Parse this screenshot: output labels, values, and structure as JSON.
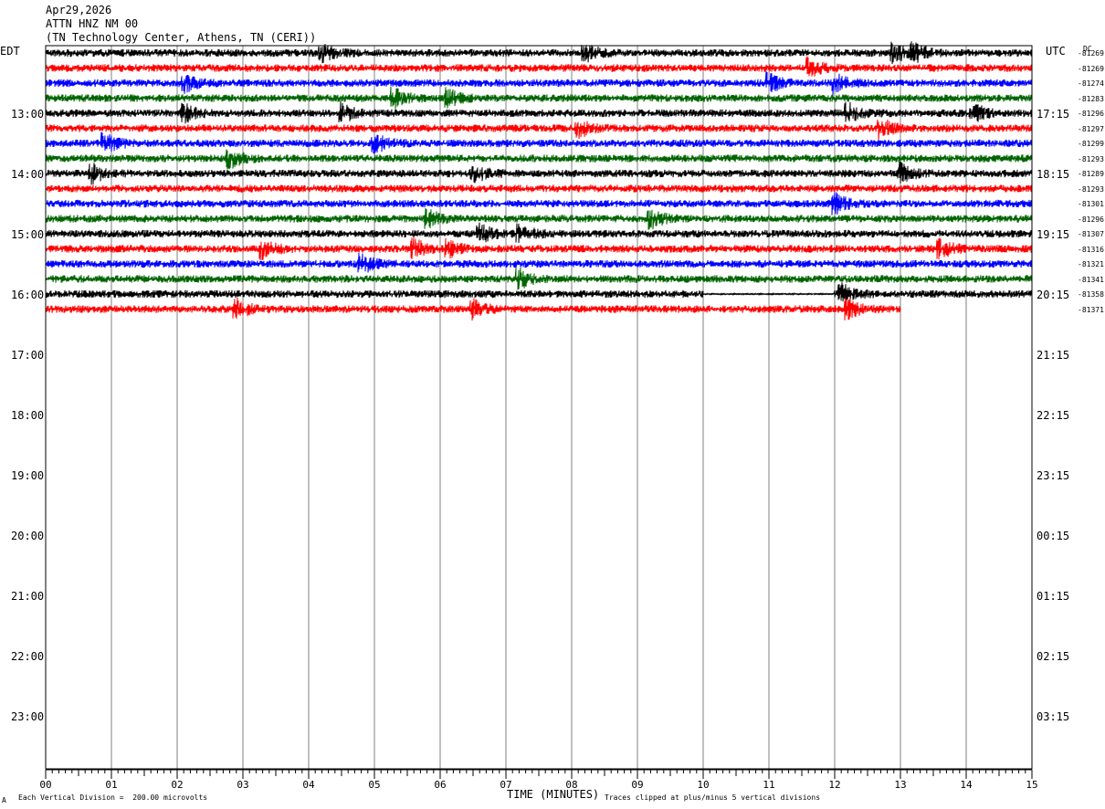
{
  "header": {
    "date": "Apr29,2026",
    "station": "ATTN HNZ NM 00",
    "location": "(TN Technology Center, Athens, TN (CERI))"
  },
  "axis": {
    "left_zone": "EDT",
    "right_zone": "UTC",
    "dc_label": "DC",
    "xlabel": "TIME (MINUTES)",
    "x_ticks": [
      "00",
      "01",
      "02",
      "03",
      "04",
      "05",
      "06",
      "07",
      "08",
      "09",
      "10",
      "11",
      "12",
      "13",
      "14",
      "15"
    ],
    "x_range": [
      0,
      15
    ],
    "left_hours": [
      "13:00",
      "14:00",
      "15:00",
      "16:00",
      "17:00",
      "18:00",
      "19:00",
      "20:00",
      "21:00",
      "22:00",
      "23:00"
    ],
    "right_hours": [
      "17:15",
      "18:15",
      "19:15",
      "20:15",
      "21:15",
      "22:15",
      "23:15",
      "00:15",
      "01:15",
      "02:15",
      "03:15"
    ]
  },
  "footer": {
    "scale": "Each Vertical Division =  200.00 microvolts",
    "clip": "Traces clipped at plus/minus 5 vertical divisions",
    "mark": "A"
  },
  "colors": {
    "trace_cycle": [
      "#000000",
      "#ff0000",
      "#0000ff",
      "#006400"
    ],
    "grid": "#808080"
  },
  "chart_data": {
    "type": "line",
    "title": "",
    "xlabel": "TIME (MINUTES)",
    "ylabel": "",
    "xlim": [
      0,
      15
    ],
    "trace_color_cycle": [
      "black",
      "red",
      "blue",
      "green"
    ],
    "traces": [
      {
        "dc": "-81269",
        "end_minute": 15,
        "events_minute": [
          4.2,
          8.2,
          12.9,
          13.2
        ]
      },
      {
        "dc": "-81269",
        "end_minute": 15,
        "events_minute": [
          11.6
        ]
      },
      {
        "dc": "-81274",
        "end_minute": 15,
        "events_minute": [
          2.1,
          11.0,
          12.0
        ]
      },
      {
        "dc": "-81283",
        "end_minute": 15,
        "events_minute": [
          5.3,
          6.1
        ]
      },
      {
        "dc": "-81296",
        "end_minute": 15,
        "events_minute": [
          2.1,
          4.5,
          12.2,
          14.1
        ]
      },
      {
        "dc": "-81297",
        "end_minute": 15,
        "events_minute": [
          8.1,
          12.7
        ]
      },
      {
        "dc": "-81299",
        "end_minute": 15,
        "events_minute": [
          0.9,
          5.0
        ]
      },
      {
        "dc": "-81293",
        "end_minute": 15,
        "events_minute": [
          2.8
        ]
      },
      {
        "dc": "-81289",
        "end_minute": 15,
        "events_minute": [
          0.7,
          6.5,
          13.0
        ]
      },
      {
        "dc": "-81293",
        "end_minute": 15,
        "events_minute": []
      },
      {
        "dc": "-81301",
        "end_minute": 15,
        "events_minute": [
          12.0
        ]
      },
      {
        "dc": "-81296",
        "end_minute": 15,
        "events_minute": [
          5.8,
          9.2
        ]
      },
      {
        "dc": "-81307",
        "end_minute": 15,
        "events_minute": [
          6.6,
          7.2
        ]
      },
      {
        "dc": "-81316",
        "end_minute": 15,
        "events_minute": [
          3.3,
          5.6,
          6.1,
          13.6
        ]
      },
      {
        "dc": "-81321",
        "end_minute": 15,
        "events_minute": [
          4.8
        ]
      },
      {
        "dc": "-81341",
        "end_minute": 15,
        "events_minute": [
          7.2
        ]
      },
      {
        "dc": "-81358",
        "end_minute": 15,
        "events_minute": [
          12.1
        ],
        "gap_minutes": [
          10.0,
          12.0
        ]
      },
      {
        "dc": "-81371",
        "end_minute": 13.0,
        "events_minute": [
          2.9,
          6.5,
          12.2
        ]
      }
    ]
  }
}
